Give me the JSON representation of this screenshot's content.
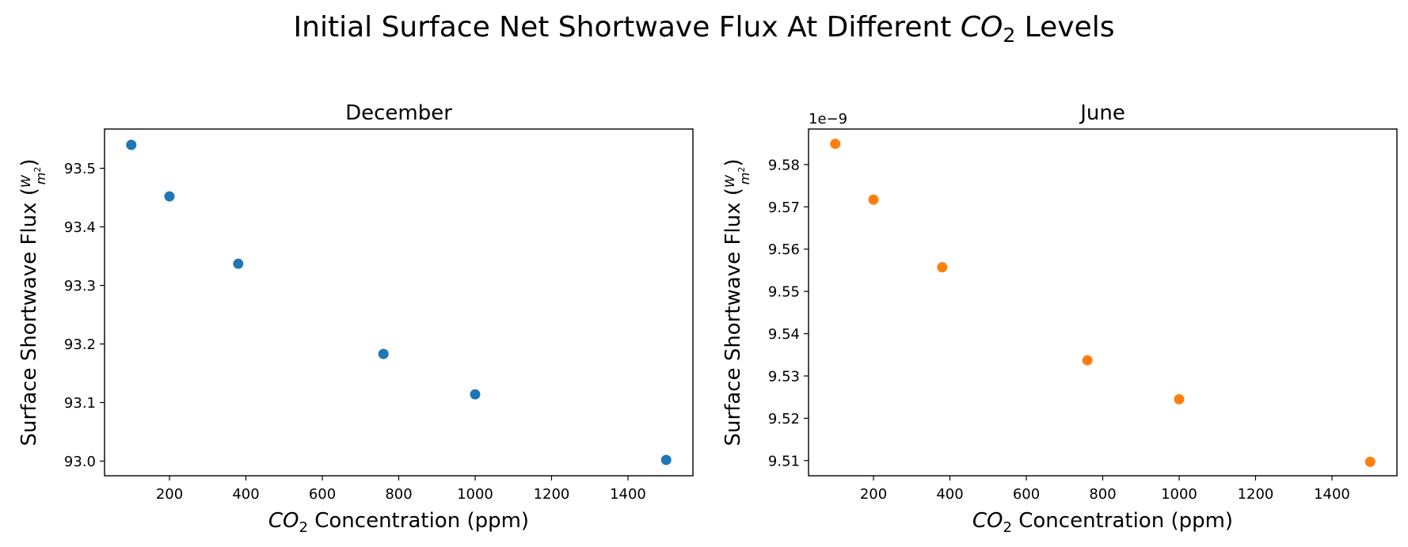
{
  "figure": {
    "suptitle_prefix": "Initial Surface Net Shortwave Flux At Different ",
    "suptitle_var": "CO",
    "suptitle_sub": "2",
    "suptitle_suffix": " Levels"
  },
  "chart_data": [
    {
      "type": "scatter",
      "title": "December",
      "xlabel_var": "CO",
      "xlabel_sub": "2",
      "xlabel_suffix": " Concentration (ppm)",
      "ylabel_text": "Surface Shortwave Flux (",
      "ylabel_num": "W",
      "ylabel_den": "m",
      "ylabel_den_sup": "2",
      "ylabel_close": ")",
      "color": "#1f77b4",
      "xlim": [
        30,
        1570
      ],
      "ylim": [
        92.975,
        93.567
      ],
      "xticks": [
        200,
        400,
        600,
        800,
        1000,
        1200,
        1400
      ],
      "yticks": [
        93.0,
        93.1,
        93.2,
        93.3,
        93.4,
        93.5
      ],
      "ytick_labels": [
        "93.0",
        "93.1",
        "93.2",
        "93.3",
        "93.4",
        "93.5"
      ],
      "offset_label": "",
      "x": [
        100,
        200,
        380,
        760,
        1000,
        1500
      ],
      "y": [
        93.54,
        93.452,
        93.337,
        93.183,
        93.114,
        93.002
      ],
      "grid": false,
      "legend": "none"
    },
    {
      "type": "scatter",
      "title": "June",
      "xlabel_var": "CO",
      "xlabel_sub": "2",
      "xlabel_suffix": " Concentration (ppm)",
      "ylabel_text": "Surface Shortwave Flux (",
      "ylabel_num": "W",
      "ylabel_den": "m",
      "ylabel_den_sup": "2",
      "ylabel_close": ")",
      "color": "#ff7f0e",
      "xlim": [
        30,
        1570
      ],
      "ylim": [
        9.5064,
        9.5884
      ],
      "xticks": [
        200,
        400,
        600,
        800,
        1000,
        1200,
        1400
      ],
      "yticks": [
        9.51,
        9.52,
        9.53,
        9.54,
        9.55,
        9.56,
        9.57,
        9.58
      ],
      "ytick_labels": [
        "9.51",
        "9.52",
        "9.53",
        "9.54",
        "9.55",
        "9.56",
        "9.57",
        "9.58"
      ],
      "offset_label": "1e−9",
      "x": [
        100,
        200,
        380,
        760,
        1000,
        1500
      ],
      "y": [
        9.5849,
        9.5717,
        9.5557,
        9.5337,
        9.5245,
        9.5097
      ],
      "grid": false,
      "legend": "none"
    }
  ]
}
